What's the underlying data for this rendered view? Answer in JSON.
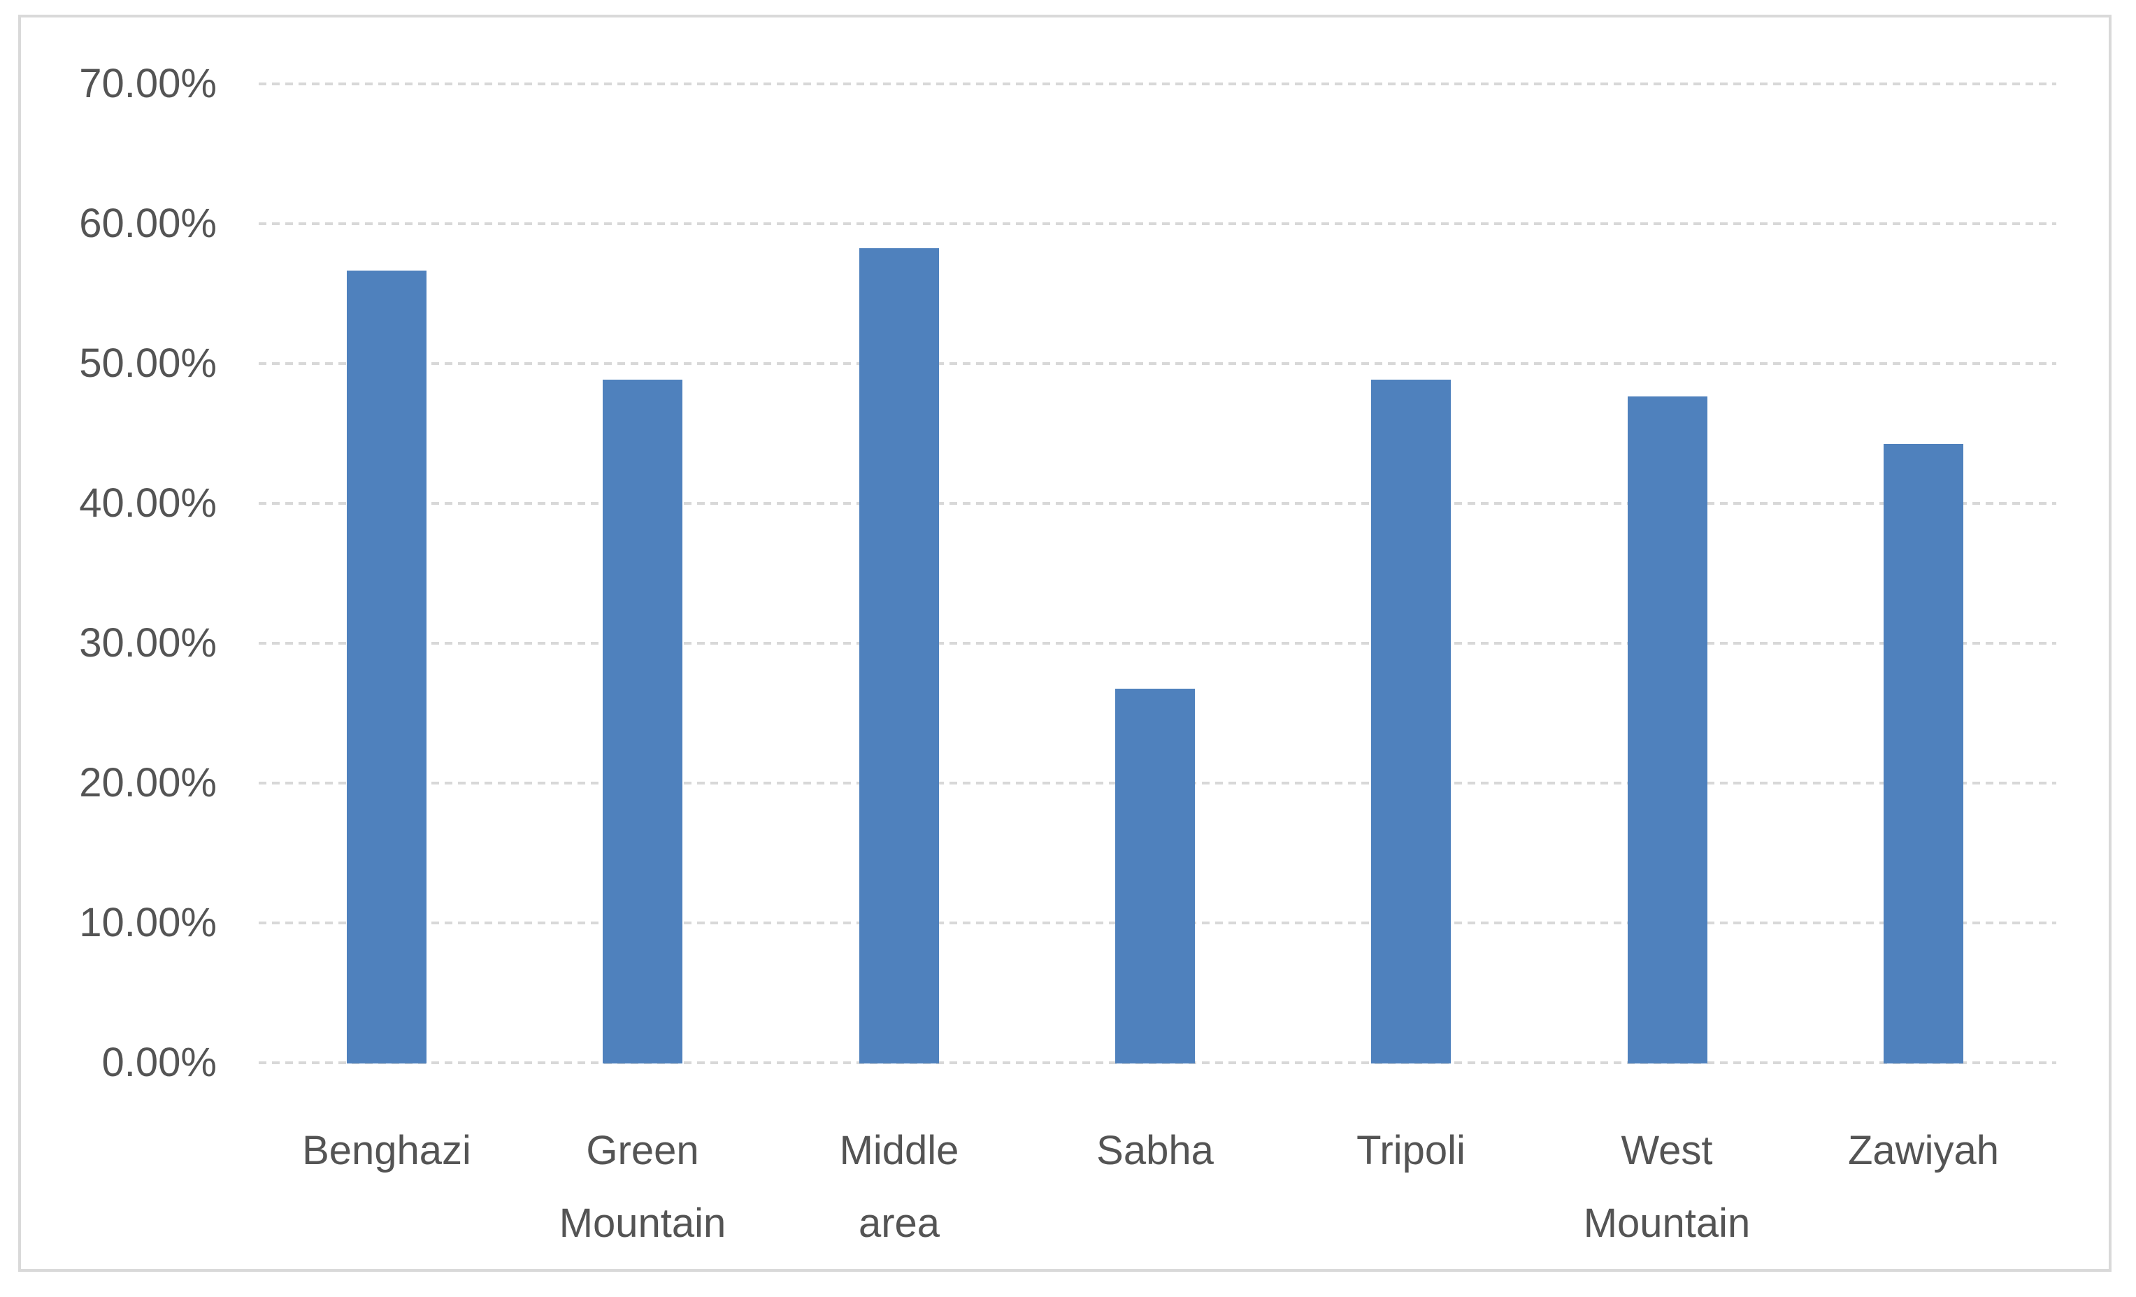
{
  "chart_data": {
    "type": "bar",
    "title": "",
    "xlabel": "",
    "ylabel": "",
    "categories": [
      "Benghazi",
      "Green Mountain",
      "Middle area",
      "Sabha",
      "Tripoli",
      "West Mountain",
      "Zawiyah"
    ],
    "categories_line_breaks": [
      [
        "Benghazi"
      ],
      [
        "Green",
        "Mountain"
      ],
      [
        "Middle",
        "area"
      ],
      [
        "Sabha"
      ],
      [
        "Tripoli"
      ],
      [
        "West",
        "Mountain"
      ],
      [
        "Zawiyah"
      ]
    ],
    "values": [
      56.7,
      48.9,
      58.3,
      26.8,
      48.9,
      47.7,
      44.3
    ],
    "value_unit": "percent",
    "ylim": [
      0,
      70
    ],
    "yticks": [
      {
        "value": 0,
        "label": "0.00%"
      },
      {
        "value": 10,
        "label": "10.00%"
      },
      {
        "value": 20,
        "label": "20.00%"
      },
      {
        "value": 30,
        "label": "30.00%"
      },
      {
        "value": 40,
        "label": "40.00%"
      },
      {
        "value": 50,
        "label": "50.00%"
      },
      {
        "value": 60,
        "label": "60.00%"
      },
      {
        "value": 70,
        "label": "70.00%"
      }
    ],
    "grid": "horizontal-dashed",
    "legend": "none",
    "colors": {
      "bar": "#4F81BD",
      "gridline": "#D8D8D8",
      "frame_border": "#D9D9D9",
      "axis_text": "#545454",
      "background": "#FFFFFF"
    }
  }
}
